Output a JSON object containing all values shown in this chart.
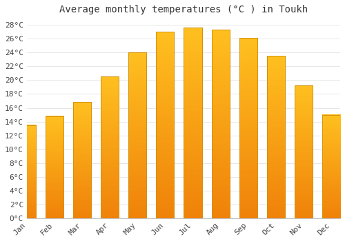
{
  "title": "Average monthly temperatures (°C ) in Toukh",
  "months": [
    "Jan",
    "Feb",
    "Mar",
    "Apr",
    "May",
    "Jun",
    "Jul",
    "Aug",
    "Sep",
    "Oct",
    "Nov",
    "Dec"
  ],
  "values": [
    13.5,
    14.8,
    16.8,
    20.5,
    24.0,
    27.0,
    27.6,
    27.3,
    26.1,
    23.5,
    19.2,
    15.0
  ],
  "bar_color_top": "#FFC020",
  "bar_color_bottom": "#F0820A",
  "bar_edge_color": "#D4900A",
  "background_color": "#FFFFFF",
  "grid_color": "#DDDDDD",
  "text_color": "#444444",
  "title_color": "#333333",
  "ylim": [
    0,
    29
  ],
  "ytick_step": 2,
  "title_fontsize": 10,
  "tick_fontsize": 8
}
